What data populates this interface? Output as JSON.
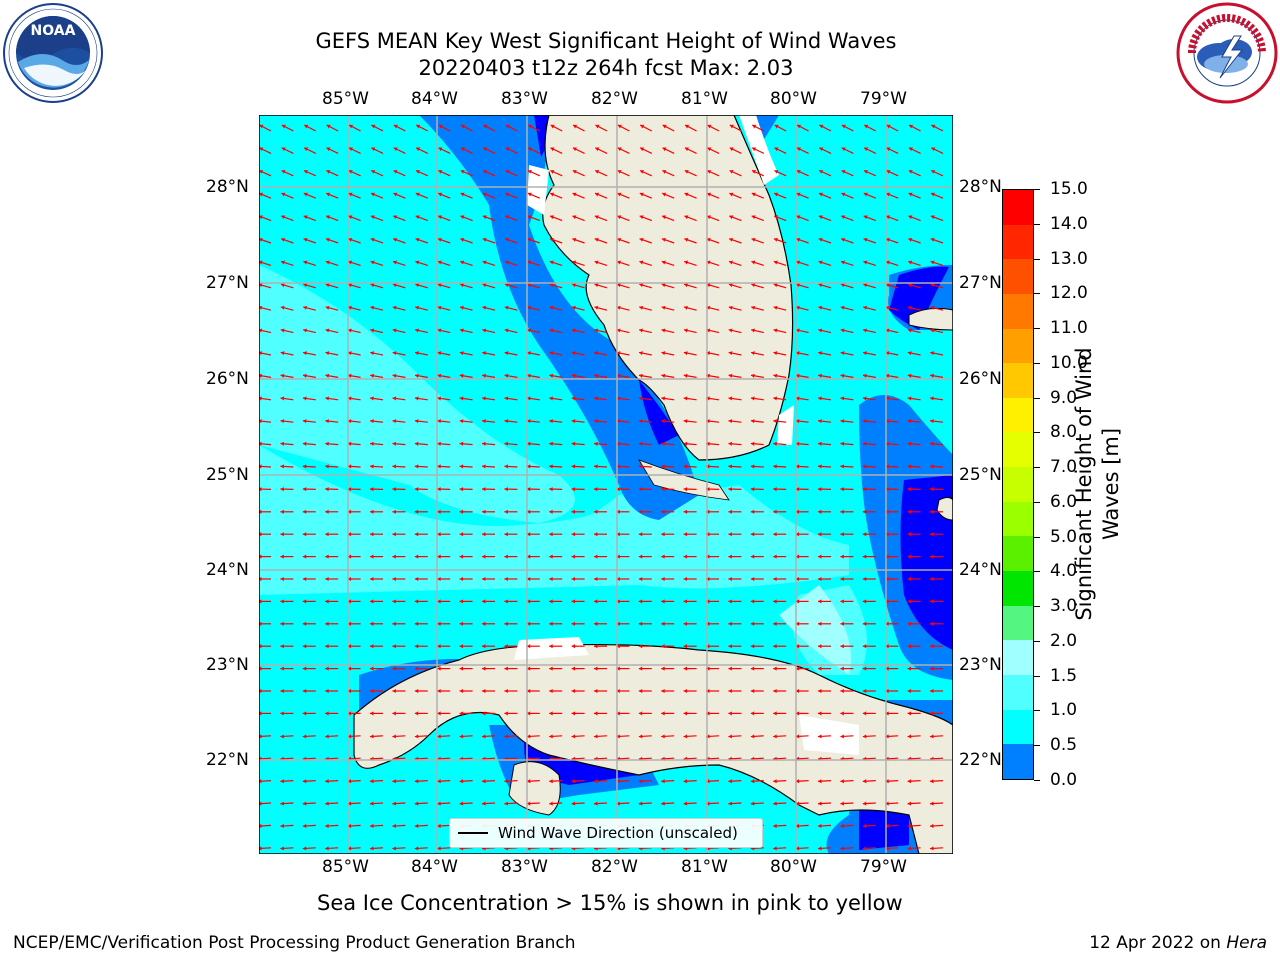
{
  "header": {
    "title_line1": "GEFS MEAN Key West Significant Height of Wind Waves",
    "title_line2": "20220403 t12z 264h fcst   Max: 2.03"
  },
  "logos": {
    "left": {
      "name": "NOAA",
      "ring_text": "NATIONAL OCEANIC AND ATMOSPHERIC ADMINISTRATION · U.S. DEPARTMENT OF COMMERCE"
    },
    "right": {
      "name": "NATIONAL WEATHER SERVICE"
    }
  },
  "map": {
    "lon_labels": [
      "85°W",
      "84°W",
      "83°W",
      "82°W",
      "81°W",
      "80°W",
      "79°W"
    ],
    "lat_labels": [
      "28°N",
      "27°N",
      "26°N",
      "25°N",
      "24°N",
      "23°N",
      "22°N"
    ],
    "legend_label": "Wind Wave Direction (unscaled)",
    "colors": {
      "ocean_base": "#00ffff",
      "land": "#eeecdc",
      "arrow": "#ff0000",
      "grid": "#b0b0b0"
    }
  },
  "colorbar": {
    "label_line1": "Significant Height of Wind",
    "label_line2": "Waves [m]",
    "ticks": [
      "15.0",
      "14.0",
      "13.0",
      "12.0",
      "11.0",
      "10.0",
      "9.0",
      "8.0",
      "7.0",
      "6.0",
      "5.0",
      "4.0",
      "3.0",
      "2.0",
      "1.5",
      "1.0",
      "0.5",
      "0.0"
    ],
    "colors": [
      "#ff0000",
      "#ff2600",
      "#ff5000",
      "#ff7800",
      "#ff9f00",
      "#ffc800",
      "#fff000",
      "#e6ff00",
      "#c8ff00",
      "#9bff00",
      "#5af000",
      "#00e600",
      "#55f582",
      "#a0ffff",
      "#50ffff",
      "#00ffff",
      "#0080ff",
      "#0000ff"
    ]
  },
  "notes": {
    "sea_ice": "Sea Ice Concentration > 15% is shown in pink to yellow",
    "footer_left": "NCEP/EMC/Verification Post Processing Product Generation Branch",
    "footer_right_date": "12 Apr 2022 on ",
    "footer_right_host": "Hera"
  }
}
